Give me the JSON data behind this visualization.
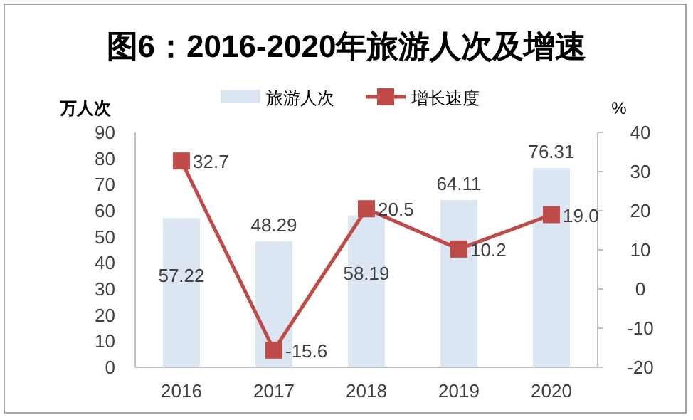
{
  "chart_data": {
    "type": "bar",
    "title": "图6：2016-2020年旅游人次及增速",
    "ylabel": "万人次",
    "y2label": "%",
    "categories": [
      "2016",
      "2017",
      "2018",
      "2019",
      "2020"
    ],
    "series": [
      {
        "name": "旅游人次",
        "color": "#dce6f2",
        "values": [
          57.22,
          48.29,
          58.19,
          64.11,
          76.31
        ]
      },
      {
        "name": "增长速度",
        "type": "line",
        "axis": "y2",
        "color": "#be4b48",
        "marker": "square",
        "values": [
          32.7,
          -15.6,
          20.5,
          10.2,
          19.0
        ],
        "value_labels": [
          "32.7",
          "-15.6",
          "20.5",
          "10.2",
          "19.0"
        ]
      }
    ],
    "ylim": [
      0,
      90
    ],
    "yticks": [
      0,
      10,
      20,
      30,
      40,
      50,
      60,
      70,
      80,
      90
    ],
    "y2lim": [
      -20,
      40
    ],
    "y2ticks": [
      -20,
      -10,
      0,
      10,
      20,
      30,
      40
    ],
    "data_labels": true,
    "legend": "top",
    "grid": false
  }
}
